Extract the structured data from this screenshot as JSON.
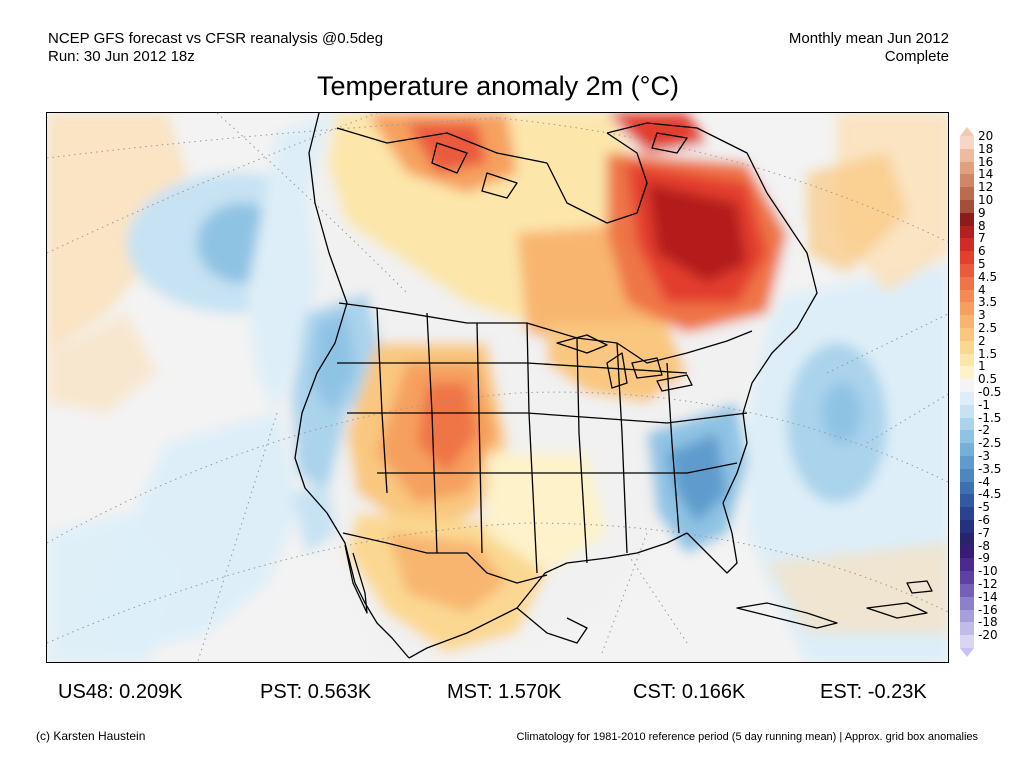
{
  "header": {
    "left_line1": "NCEP GFS forecast vs CFSR reanalysis @0.5deg",
    "left_line2": "Run: 30 Jun 2012 18z",
    "right_line1": "Monthly mean Jun 2012",
    "right_line2": "Complete"
  },
  "title": "Temperature anomaly 2m (°C)",
  "legend": {
    "top_triangle_color": "#f4c9b3",
    "bottom_triangle_color": "#c9c2f4",
    "entries": [
      {
        "label": "20",
        "color": "#f7d6c5"
      },
      {
        "label": "18",
        "color": "#eebb9f"
      },
      {
        "label": "16",
        "color": "#e0a17f"
      },
      {
        "label": "14",
        "color": "#d08765"
      },
      {
        "label": "12",
        "color": "#bb6c4c"
      },
      {
        "label": "10",
        "color": "#a54f38"
      },
      {
        "label": "9",
        "color": "#8e1b1b"
      },
      {
        "label": "8",
        "color": "#b41f1f"
      },
      {
        "label": "7",
        "color": "#d12b25"
      },
      {
        "label": "6",
        "color": "#e33e2e"
      },
      {
        "label": "5",
        "color": "#ea5a3c"
      },
      {
        "label": "4.5",
        "color": "#ef7447"
      },
      {
        "label": "4",
        "color": "#f38b53"
      },
      {
        "label": "3.5",
        "color": "#f6a05f"
      },
      {
        "label": "3",
        "color": "#f8b56f"
      },
      {
        "label": "2.5",
        "color": "#f9c77f"
      },
      {
        "label": "2",
        "color": "#fbd892"
      },
      {
        "label": "1.5",
        "color": "#fce6aa"
      },
      {
        "label": "1",
        "color": "#fdf2c9"
      },
      {
        "label": "0.5",
        "color": "#f4f4f4"
      },
      {
        "label": "-0.5",
        "color": "#ddeef8"
      },
      {
        "label": "-1",
        "color": "#c6e2f3"
      },
      {
        "label": "-1.5",
        "color": "#aad3ec"
      },
      {
        "label": "-2",
        "color": "#8fc3e4"
      },
      {
        "label": "-2.5",
        "color": "#75b0d9"
      },
      {
        "label": "-3",
        "color": "#5f9ccd"
      },
      {
        "label": "-3.5",
        "color": "#4c87c0"
      },
      {
        "label": "-4",
        "color": "#3d70b2"
      },
      {
        "label": "-4.5",
        "color": "#3259a2"
      },
      {
        "label": "-5",
        "color": "#2a4391"
      },
      {
        "label": "-6",
        "color": "#243080"
      },
      {
        "label": "-7",
        "color": "#28226f"
      },
      {
        "label": "-8",
        "color": "#371c77"
      },
      {
        "label": "-9",
        "color": "#4a2a8c"
      },
      {
        "label": "-10",
        "color": "#5e42a3"
      },
      {
        "label": "-12",
        "color": "#7460b8"
      },
      {
        "label": "-14",
        "color": "#8c80cb"
      },
      {
        "label": "-16",
        "color": "#a79fdb"
      },
      {
        "label": "-18",
        "color": "#c0bbe8"
      },
      {
        "label": "-20",
        "color": "#d9d6f3"
      }
    ]
  },
  "stats": {
    "us48": "US48: 0.209K",
    "pst": "PST: 0.563K",
    "mst": "MST: 1.570K",
    "cst": "CST: 0.166K",
    "est": "EST: -0.23K"
  },
  "footer": {
    "copyright": "(c) Karsten Haustein",
    "climatology_note": "Climatology for 1981-2010 reference period (5 day running mean) | Approx. grid box anomalies"
  }
}
